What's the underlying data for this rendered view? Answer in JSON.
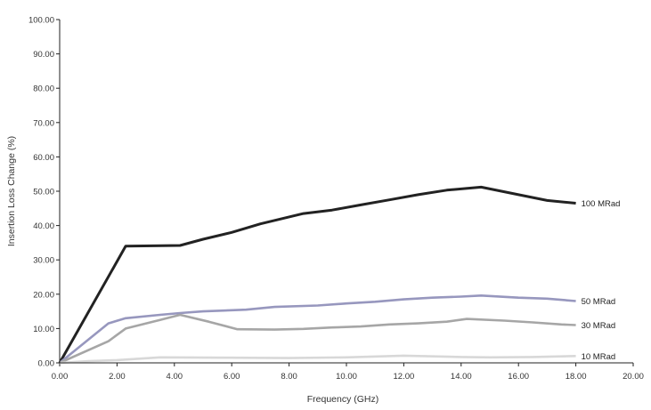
{
  "chart_data": {
    "type": "line",
    "title": "",
    "xlabel": "Frequency (GHz)",
    "ylabel": "Insertion Loss Change (%)",
    "xlim": [
      0,
      20
    ],
    "ylim": [
      0,
      100
    ],
    "x_ticks": [
      "0.00",
      "2.00",
      "4.00",
      "6.00",
      "8.00",
      "10.00",
      "12.00",
      "14.00",
      "16.00",
      "18.00",
      "20.00"
    ],
    "y_ticks": [
      "0.00",
      "10.00",
      "20.00",
      "30.00",
      "40.00",
      "50.00",
      "60.00",
      "70.00",
      "80.00",
      "90.00",
      "100.00"
    ],
    "grid": false,
    "legend": "inline labels at line ends",
    "series": [
      {
        "name": "100 MRad",
        "color": "#222222",
        "points": [
          [
            0,
            0
          ],
          [
            2.3,
            34
          ],
          [
            4.2,
            34.2
          ],
          [
            5.0,
            36
          ],
          [
            6.0,
            38
          ],
          [
            7.0,
            40.5
          ],
          [
            8.5,
            43.5
          ],
          [
            9.5,
            44.5
          ],
          [
            10.5,
            46
          ],
          [
            11.5,
            47.5
          ],
          [
            12.5,
            49
          ],
          [
            13.5,
            50.3
          ],
          [
            14.7,
            51.2
          ],
          [
            16.0,
            49
          ],
          [
            17.0,
            47.3
          ],
          [
            18.0,
            46.5
          ]
        ]
      },
      {
        "name": "50 MRad",
        "color": "#9797be",
        "points": [
          [
            0,
            0
          ],
          [
            1.7,
            11.5
          ],
          [
            2.3,
            13
          ],
          [
            3.5,
            14
          ],
          [
            4.2,
            14.5
          ],
          [
            5.0,
            15
          ],
          [
            6.5,
            15.5
          ],
          [
            7.5,
            16.3
          ],
          [
            9.0,
            16.7
          ],
          [
            10.0,
            17.3
          ],
          [
            11.0,
            17.8
          ],
          [
            12.0,
            18.5
          ],
          [
            13.0,
            19
          ],
          [
            14.0,
            19.3
          ],
          [
            14.7,
            19.6
          ],
          [
            16.0,
            19
          ],
          [
            17.0,
            18.7
          ],
          [
            18.0,
            18
          ]
        ]
      },
      {
        "name": "30 MRad",
        "color": "#a6a6a6",
        "points": [
          [
            0,
            0
          ],
          [
            1.7,
            6.3
          ],
          [
            2.3,
            10
          ],
          [
            3.5,
            12.5
          ],
          [
            4.2,
            14
          ],
          [
            5.2,
            12
          ],
          [
            6.2,
            9.8
          ],
          [
            7.5,
            9.7
          ],
          [
            8.5,
            9.9
          ],
          [
            9.5,
            10.3
          ],
          [
            10.5,
            10.6
          ],
          [
            11.5,
            11.2
          ],
          [
            12.5,
            11.5
          ],
          [
            13.5,
            12
          ],
          [
            14.2,
            12.8
          ],
          [
            15.5,
            12.3
          ],
          [
            16.5,
            11.8
          ],
          [
            17.5,
            11.2
          ],
          [
            18.0,
            11
          ]
        ]
      },
      {
        "name": "10 MRad",
        "color": "#d8d8d8",
        "points": [
          [
            0,
            0
          ],
          [
            1.0,
            0.5
          ],
          [
            2.0,
            0.8
          ],
          [
            3.5,
            1.6
          ],
          [
            6.0,
            1.5
          ],
          [
            8.0,
            1.4
          ],
          [
            10.0,
            1.6
          ],
          [
            12.0,
            2.1
          ],
          [
            14.0,
            1.7
          ],
          [
            15.0,
            1.6
          ],
          [
            16.5,
            1.7
          ],
          [
            18.0,
            2
          ]
        ]
      }
    ]
  }
}
